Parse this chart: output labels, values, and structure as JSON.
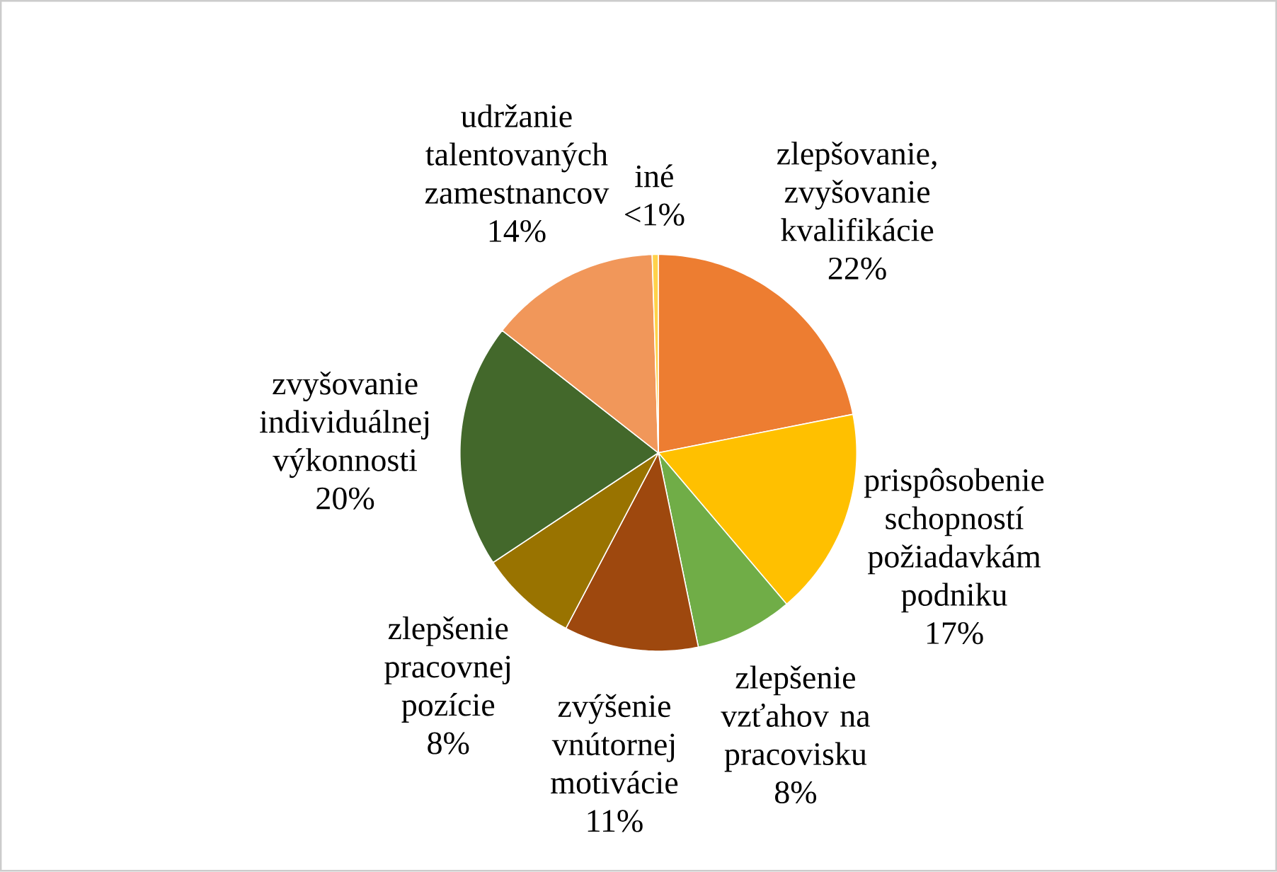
{
  "chart_data": {
    "type": "pie",
    "categories": [
      "zlepšovanie, zvyšovanie kvalifikácie",
      "prispôsobenie schopností požiadavkám podniku",
      "zlepšenie vzťahov na pracovisku",
      "zvýšenie vnútornej motivácie",
      "zlepšenie pracovnej pozície",
      "zvyšovanie individuálnej výkonnosti",
      "udržanie talentovaných zamestnancov",
      "iné"
    ],
    "values": [
      22,
      17,
      8,
      11,
      8,
      20,
      14,
      0.5
    ],
    "value_labels": [
      "22%",
      "17%",
      "8%",
      "11%",
      "8%",
      "20%",
      "14%",
      "<1%"
    ],
    "colors": [
      "#ed7d31",
      "#ffc000",
      "#70ad47",
      "#9e480e",
      "#997300",
      "#43682b",
      "#f1975a",
      "#ffd24a"
    ]
  }
}
